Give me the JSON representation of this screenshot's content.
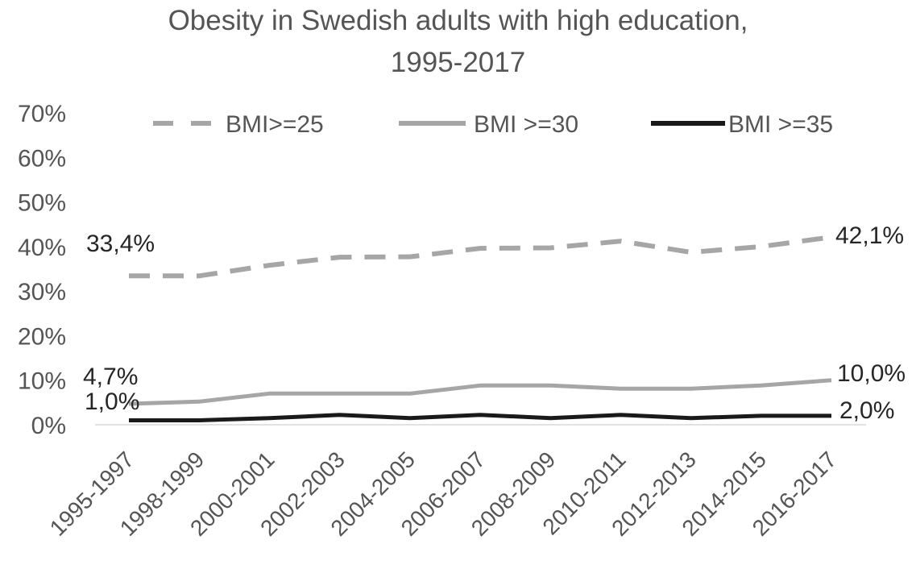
{
  "chart_data": {
    "type": "line",
    "title_line_1": "Obesity in Swedish adults with high education,",
    "title_line_2": "1995-2017",
    "xlabel": "",
    "ylabel": "",
    "ylim": [
      0,
      70
    ],
    "y_ticks": [
      "0%",
      "10%",
      "20%",
      "30%",
      "40%",
      "50%",
      "60%",
      "70%"
    ],
    "grid": false,
    "legend_position": "top",
    "categories": [
      "1995-1997",
      "1998-1999",
      "2000-2001",
      "2002-2003",
      "2004-2005",
      "2006-2007",
      "2008-2009",
      "2010-2011",
      "2012-2013",
      "2014-2015",
      "2016-2017"
    ],
    "series": [
      {
        "name": "BMI>=25",
        "style": "dashed",
        "color": "#a6a6a6",
        "values": [
          33.4,
          33.4,
          35.8,
          37.6,
          37.7,
          39.6,
          39.7,
          41.2,
          38.7,
          40.0,
          42.1
        ],
        "first_label": "33,4%",
        "last_label": "42,1%"
      },
      {
        "name": "BMI >=30",
        "style": "solid",
        "color": "#a6a6a6",
        "values": [
          4.7,
          5.2,
          7.0,
          7.0,
          7.0,
          8.8,
          8.8,
          8.1,
          8.1,
          8.8,
          10.0
        ],
        "first_label": "4,7%",
        "last_label": "10,0%"
      },
      {
        "name": "BMI >=35",
        "style": "solid",
        "color": "#1a1a1a",
        "values": [
          1.0,
          1.0,
          1.5,
          2.2,
          1.5,
          2.2,
          1.5,
          2.2,
          1.5,
          2.0,
          2.0
        ],
        "first_label": "1,0%",
        "last_label": "2,0%"
      }
    ]
  }
}
